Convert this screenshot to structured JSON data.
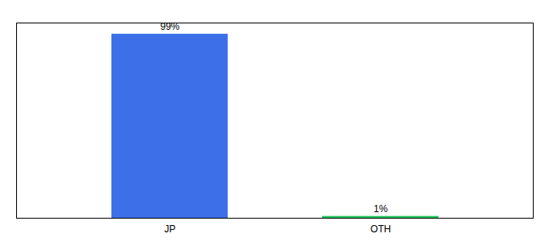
{
  "chart_data": {
    "type": "bar",
    "categories": [
      "JP",
      "OTH"
    ],
    "values": [
      99,
      1
    ],
    "value_labels": [
      "99%",
      "1%"
    ],
    "colors": [
      "#3d6fe8",
      "#22C55E"
    ],
    "ylim": [
      0,
      105
    ],
    "data_labels": true,
    "tick_labels": "x"
  }
}
